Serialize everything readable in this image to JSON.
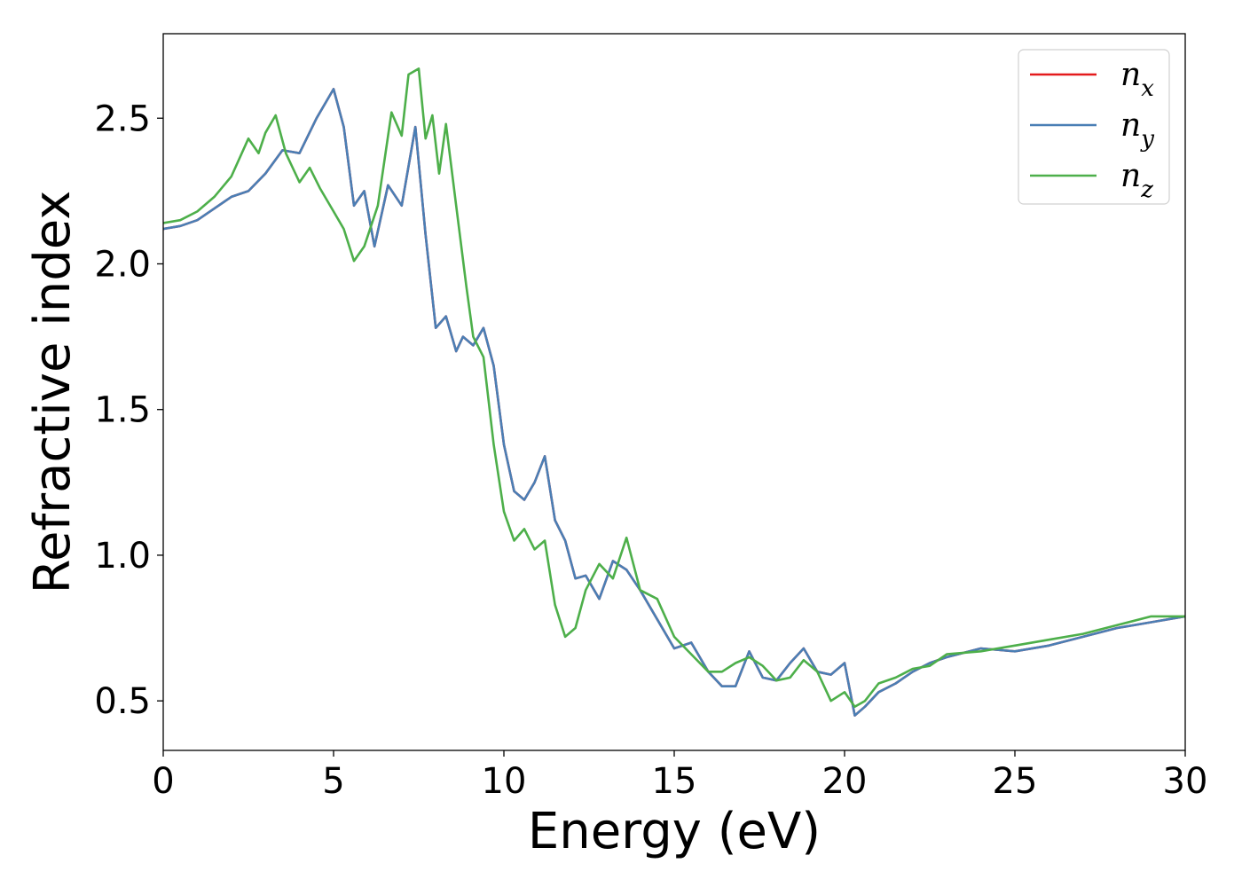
{
  "chart_data": {
    "type": "line",
    "title": "",
    "xlabel": "Energy (eV)",
    "ylabel": "Refractive index",
    "xlim": [
      0,
      30
    ],
    "ylim": [
      0.33,
      2.79
    ],
    "xticks": [
      0,
      5,
      10,
      15,
      20,
      25,
      30
    ],
    "xtick_labels": [
      "0",
      "5",
      "10",
      "15",
      "20",
      "25",
      "30"
    ],
    "yticks": [
      0.5,
      1.0,
      1.5,
      2.0,
      2.5
    ],
    "ytick_labels": [
      "0.5",
      "1.0",
      "1.5",
      "2.0",
      "2.5"
    ],
    "grid": false,
    "legend_position": "top-right",
    "series": [
      {
        "name": "n_x",
        "label_base": "n",
        "label_sub": "x",
        "color": "#e41a1c",
        "x": [
          0,
          0.5,
          1.0,
          1.5,
          2.0,
          2.5,
          3.0,
          3.5,
          4.0,
          4.5,
          5.0,
          5.3,
          5.6,
          5.9,
          6.2,
          6.6,
          7.0,
          7.4,
          7.7,
          8.0,
          8.3,
          8.6,
          8.8,
          9.1,
          9.4,
          9.7,
          10.0,
          10.3,
          10.6,
          10.9,
          11.2,
          11.5,
          11.8,
          12.1,
          12.4,
          12.8,
          13.2,
          13.6,
          14.0,
          14.5,
          15.0,
          15.5,
          16.0,
          16.4,
          16.8,
          17.2,
          17.6,
          18.0,
          18.4,
          18.8,
          19.2,
          19.6,
          20.0,
          20.3,
          20.6,
          21.0,
          21.5,
          22.0,
          22.5,
          23.0,
          24.0,
          25.0,
          26.0,
          27.0,
          28.0,
          29.0,
          30.0
        ],
        "y": [
          2.12,
          2.13,
          2.15,
          2.19,
          2.23,
          2.25,
          2.31,
          2.39,
          2.38,
          2.5,
          2.6,
          2.47,
          2.2,
          2.25,
          2.06,
          2.27,
          2.2,
          2.47,
          2.1,
          1.78,
          1.82,
          1.7,
          1.75,
          1.72,
          1.78,
          1.65,
          1.38,
          1.22,
          1.19,
          1.25,
          1.34,
          1.12,
          1.05,
          0.92,
          0.93,
          0.85,
          0.98,
          0.95,
          0.88,
          0.78,
          0.68,
          0.7,
          0.6,
          0.55,
          0.55,
          0.67,
          0.58,
          0.57,
          0.63,
          0.68,
          0.6,
          0.59,
          0.63,
          0.45,
          0.48,
          0.53,
          0.56,
          0.6,
          0.63,
          0.65,
          0.68,
          0.67,
          0.69,
          0.72,
          0.75,
          0.77,
          0.79
        ]
      },
      {
        "name": "n_y",
        "label_base": "n",
        "label_sub": "y",
        "color": "#4a7fb5",
        "x": [
          0,
          0.5,
          1.0,
          1.5,
          2.0,
          2.5,
          3.0,
          3.5,
          4.0,
          4.5,
          5.0,
          5.3,
          5.6,
          5.9,
          6.2,
          6.6,
          7.0,
          7.4,
          7.7,
          8.0,
          8.3,
          8.6,
          8.8,
          9.1,
          9.4,
          9.7,
          10.0,
          10.3,
          10.6,
          10.9,
          11.2,
          11.5,
          11.8,
          12.1,
          12.4,
          12.8,
          13.2,
          13.6,
          14.0,
          14.5,
          15.0,
          15.5,
          16.0,
          16.4,
          16.8,
          17.2,
          17.6,
          18.0,
          18.4,
          18.8,
          19.2,
          19.6,
          20.0,
          20.3,
          20.6,
          21.0,
          21.5,
          22.0,
          22.5,
          23.0,
          24.0,
          25.0,
          26.0,
          27.0,
          28.0,
          29.0,
          30.0
        ],
        "y": [
          2.12,
          2.13,
          2.15,
          2.19,
          2.23,
          2.25,
          2.31,
          2.39,
          2.38,
          2.5,
          2.6,
          2.47,
          2.2,
          2.25,
          2.06,
          2.27,
          2.2,
          2.47,
          2.1,
          1.78,
          1.82,
          1.7,
          1.75,
          1.72,
          1.78,
          1.65,
          1.38,
          1.22,
          1.19,
          1.25,
          1.34,
          1.12,
          1.05,
          0.92,
          0.93,
          0.85,
          0.98,
          0.95,
          0.88,
          0.78,
          0.68,
          0.7,
          0.6,
          0.55,
          0.55,
          0.67,
          0.58,
          0.57,
          0.63,
          0.68,
          0.6,
          0.59,
          0.63,
          0.45,
          0.48,
          0.53,
          0.56,
          0.6,
          0.63,
          0.65,
          0.68,
          0.67,
          0.69,
          0.72,
          0.75,
          0.77,
          0.79
        ]
      },
      {
        "name": "n_z",
        "label_base": "n",
        "label_sub": "z",
        "color": "#4daf4a",
        "x": [
          0,
          0.5,
          1.0,
          1.5,
          2.0,
          2.5,
          2.8,
          3.0,
          3.3,
          3.6,
          4.0,
          4.3,
          4.6,
          5.0,
          5.3,
          5.6,
          5.9,
          6.3,
          6.7,
          7.0,
          7.2,
          7.5,
          7.7,
          7.9,
          8.1,
          8.3,
          8.6,
          8.9,
          9.1,
          9.4,
          9.7,
          10.0,
          10.3,
          10.6,
          10.9,
          11.2,
          11.5,
          11.8,
          12.1,
          12.4,
          12.8,
          13.2,
          13.6,
          14.0,
          14.5,
          15.0,
          15.5,
          16.0,
          16.4,
          16.8,
          17.2,
          17.6,
          18.0,
          18.4,
          18.8,
          19.2,
          19.6,
          20.0,
          20.3,
          20.6,
          21.0,
          21.5,
          22.0,
          22.5,
          23.0,
          24.0,
          25.0,
          26.0,
          27.0,
          28.0,
          29.0,
          30.0
        ],
        "y": [
          2.14,
          2.15,
          2.18,
          2.23,
          2.3,
          2.43,
          2.38,
          2.45,
          2.51,
          2.38,
          2.28,
          2.33,
          2.26,
          2.18,
          2.12,
          2.01,
          2.06,
          2.2,
          2.52,
          2.44,
          2.65,
          2.67,
          2.43,
          2.51,
          2.31,
          2.48,
          2.2,
          1.92,
          1.75,
          1.68,
          1.38,
          1.15,
          1.05,
          1.09,
          1.02,
          1.05,
          0.83,
          0.72,
          0.75,
          0.88,
          0.97,
          0.92,
          1.06,
          0.88,
          0.85,
          0.72,
          0.66,
          0.6,
          0.6,
          0.63,
          0.65,
          0.62,
          0.57,
          0.58,
          0.64,
          0.6,
          0.5,
          0.53,
          0.48,
          0.5,
          0.56,
          0.58,
          0.61,
          0.62,
          0.66,
          0.67,
          0.69,
          0.71,
          0.73,
          0.76,
          0.79,
          0.79
        ]
      }
    ]
  }
}
